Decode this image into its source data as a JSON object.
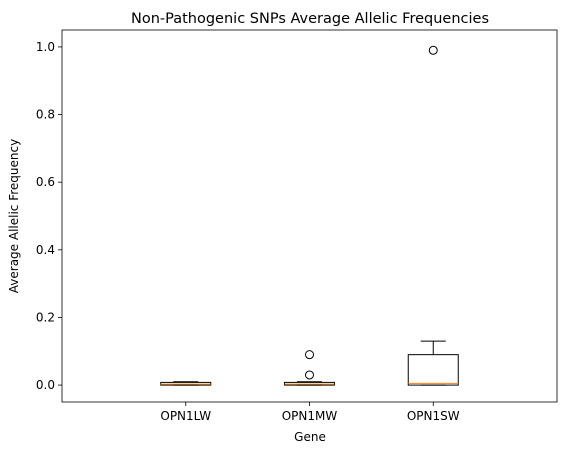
{
  "chart_data": {
    "type": "box",
    "title": "Non-Pathogenic SNPs Average Allelic Frequencies",
    "xlabel": "Gene",
    "ylabel": "Average Allelic Frequency",
    "ylim": [
      -0.05,
      1.05
    ],
    "yticks": [
      "0.0",
      "0.2",
      "0.4",
      "0.6",
      "0.8",
      "1.0"
    ],
    "grid": false,
    "box_color": "#000000",
    "median_color": "#ff7f0e",
    "categories": [
      "OPN1LW",
      "OPN1MW",
      "OPN1SW"
    ],
    "boxes": [
      {
        "min": 0.0,
        "q1": 0.0,
        "median": 0.003,
        "q3": 0.008,
        "max": 0.01,
        "outliers": []
      },
      {
        "min": 0.0,
        "q1": 0.0,
        "median": 0.003,
        "q3": 0.008,
        "max": 0.01,
        "outliers": [
          0.03,
          0.09
        ]
      },
      {
        "min": 0.0,
        "q1": 0.0,
        "median": 0.005,
        "q3": 0.09,
        "max": 0.13,
        "outliers": [
          0.99
        ]
      }
    ]
  }
}
